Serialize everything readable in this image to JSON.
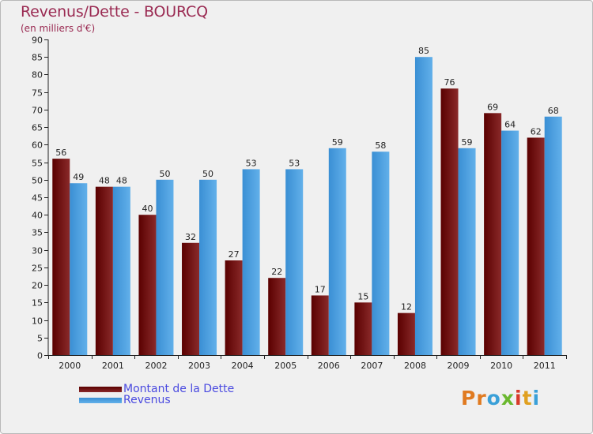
{
  "title": "Revenus/Dette - BOURCQ",
  "subtitle": "(en milliers d'€)",
  "logo": [
    "P",
    "r",
    "o",
    "x",
    "i",
    "t",
    "i"
  ],
  "colors": {
    "dette": "#7a1515",
    "revenus": "#4ea4e4",
    "title": "#9a2a52",
    "legend_text": "#4a4ae0",
    "logo": [
      "#e07a20",
      "#e07a20",
      "#3aa0d8",
      "#6ab82e",
      "#d83a2a",
      "#e0a020",
      "#3aa0d8"
    ]
  },
  "chart_data": {
    "type": "bar",
    "title": "Revenus/Dette - BOURCQ",
    "ylabel": "(en milliers d'€)",
    "xlabel": "",
    "categories": [
      "2000",
      "2001",
      "2002",
      "2003",
      "2004",
      "2005",
      "2006",
      "2007",
      "2008",
      "2009",
      "2010",
      "2011"
    ],
    "series": [
      {
        "name": "Montant de la Dette",
        "values": [
          56,
          48,
          40,
          32,
          27,
          22,
          17,
          15,
          12,
          76,
          69,
          62
        ]
      },
      {
        "name": "Revenus",
        "values": [
          49,
          48,
          50,
          50,
          53,
          53,
          59,
          58,
          85,
          59,
          64,
          68
        ]
      }
    ],
    "yticks": [
      0,
      5,
      10,
      15,
      20,
      25,
      30,
      35,
      40,
      45,
      50,
      55,
      60,
      65,
      70,
      75,
      80,
      85,
      90
    ],
    "ylim": [
      0,
      90
    ],
    "grid": false,
    "legend": "bottom-left"
  }
}
